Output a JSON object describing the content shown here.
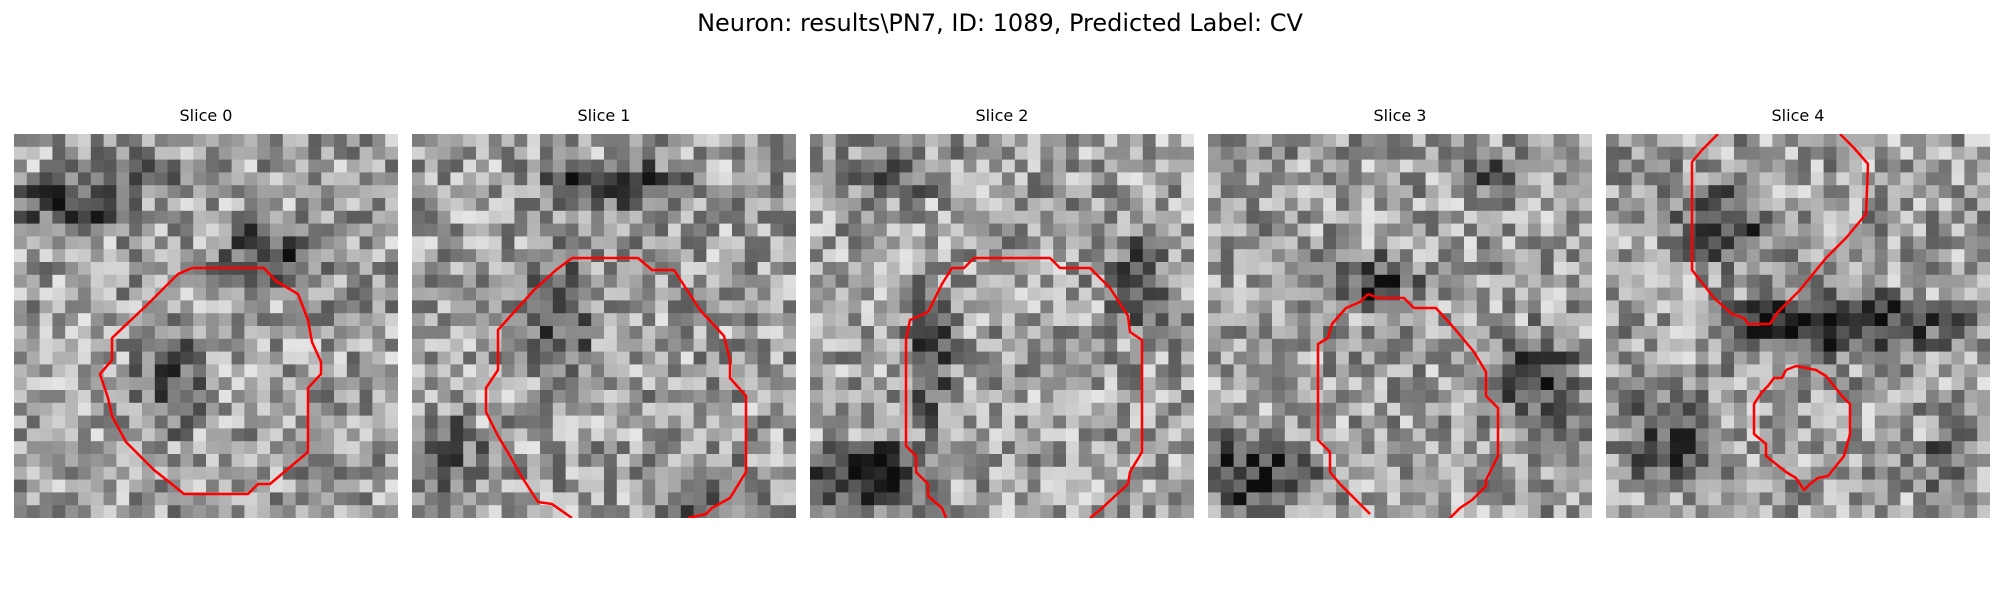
{
  "figure": {
    "title": "Neuron: results\\PN7, ID: 1089, Predicted Label: CV"
  },
  "panels": [
    {
      "title": "Slice 0"
    },
    {
      "title": "Slice 1"
    },
    {
      "title": "Slice 2"
    },
    {
      "title": "Slice 3"
    },
    {
      "title": "Slice 4"
    }
  ],
  "colors": {
    "contour": "#ff0000",
    "background": "#ffffff"
  }
}
